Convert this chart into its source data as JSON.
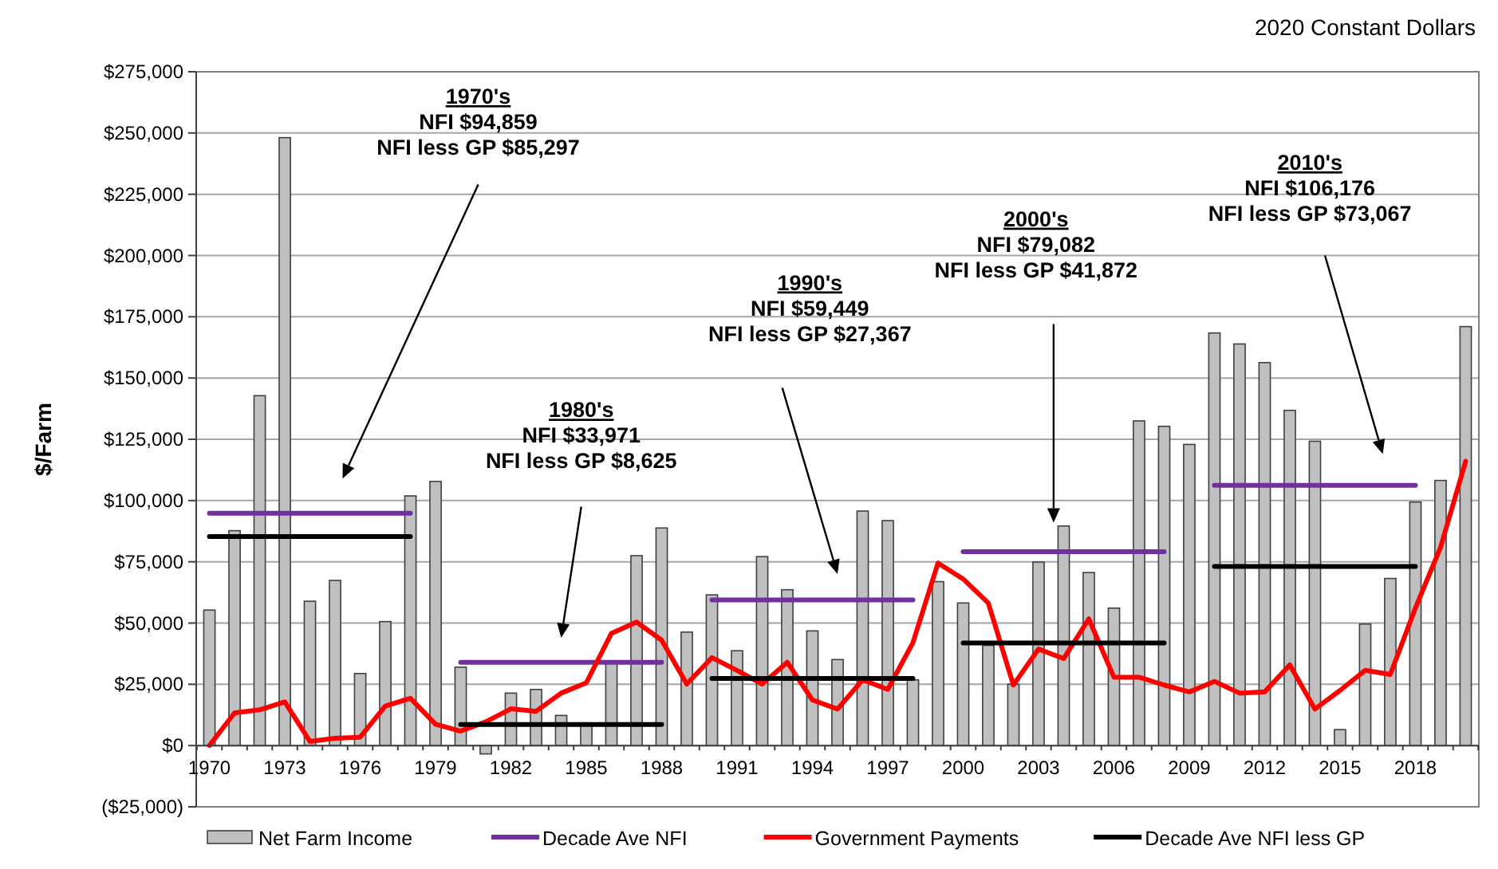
{
  "chart_data": {
    "type": "bar",
    "title": "2020 Constant Dollars",
    "ylabel": "$/Farm",
    "categories": [
      "1970",
      null,
      null,
      "1973",
      null,
      null,
      "1976",
      null,
      null,
      "1979",
      null,
      null,
      "1982",
      null,
      null,
      "1985",
      null,
      null,
      "1988",
      null,
      null,
      "1991",
      null,
      null,
      "1994",
      null,
      null,
      "1997",
      null,
      null,
      "2000",
      null,
      null,
      "2003",
      null,
      null,
      "2006",
      null,
      null,
      "2009",
      null,
      null,
      "2012",
      null,
      null,
      "2015",
      null,
      null,
      "2018",
      null,
      null
    ],
    "series": [
      {
        "name": "Net Farm Income",
        "color": "#c0c0c0",
        "values": [
          55300,
          87700,
          142800,
          248100,
          58900,
          67400,
          29400,
          50600,
          101900,
          107800,
          32000,
          -3400,
          21400,
          22900,
          12300,
          8700,
          33500,
          77500,
          88800,
          46300,
          61500,
          38700,
          77100,
          63600,
          46800,
          35100,
          95700,
          91800,
          26800,
          66900,
          58200,
          40900,
          25000,
          74900,
          89600,
          70600,
          56100,
          132500,
          130300,
          122900,
          168400,
          163900,
          156300,
          136800,
          124200,
          6500,
          49600,
          68200,
          99400,
          108200,
          171000
        ]
      },
      {
        "name": "Decade Ave NFI",
        "type": "line",
        "color": "#7030a0",
        "values": [
          94859,
          94859,
          94859,
          94859,
          94859,
          94859,
          94859,
          94859,
          94859,
          null,
          33971,
          33971,
          33971,
          33971,
          33971,
          33971,
          33971,
          33971,
          33971,
          null,
          59449,
          59449,
          59449,
          59449,
          59449,
          59449,
          59449,
          59449,
          59449,
          null,
          79082,
          79082,
          79082,
          79082,
          79082,
          79082,
          79082,
          79082,
          79082,
          null,
          106176,
          106176,
          106176,
          106176,
          106176,
          106176,
          106176,
          106176,
          106176,
          null,
          null
        ]
      },
      {
        "name": "Government Payments",
        "type": "line",
        "color": "#ff0000",
        "values": [
          0,
          13300,
          14600,
          17800,
          1700,
          3000,
          3400,
          16100,
          19300,
          8700,
          5900,
          9700,
          15000,
          14000,
          21400,
          25600,
          45800,
          50400,
          43000,
          25100,
          35900,
          30700,
          25100,
          34000,
          18600,
          14900,
          26800,
          22900,
          42000,
          74500,
          68000,
          58200,
          24700,
          39400,
          35500,
          51700,
          27900,
          27900,
          24700,
          21900,
          26200,
          21400,
          21900,
          32900,
          14900,
          22500,
          30700,
          29000,
          56100,
          80900,
          116000
        ]
      },
      {
        "name": "Decade Ave NFI less GP",
        "type": "line",
        "color": "#000000",
        "values": [
          85297,
          85297,
          85297,
          85297,
          85297,
          85297,
          85297,
          85297,
          85297,
          null,
          8625,
          8625,
          8625,
          8625,
          8625,
          8625,
          8625,
          8625,
          8625,
          null,
          27367,
          27367,
          27367,
          27367,
          27367,
          27367,
          27367,
          27367,
          27367,
          null,
          41872,
          41872,
          41872,
          41872,
          41872,
          41872,
          41872,
          41872,
          41872,
          null,
          73067,
          73067,
          73067,
          73067,
          73067,
          73067,
          73067,
          73067,
          73067,
          null,
          null
        ]
      }
    ],
    "ylim": [
      -25000,
      275000
    ],
    "yticks": [
      {
        "value": -25000,
        "label": "($25,000)"
      },
      {
        "value": 0,
        "label": "$0"
      },
      {
        "value": 25000,
        "label": "$25,000"
      },
      {
        "value": 50000,
        "label": "$50,000"
      },
      {
        "value": 75000,
        "label": "$75,000"
      },
      {
        "value": 100000,
        "label": "$100,000"
      },
      {
        "value": 125000,
        "label": "$125,000"
      },
      {
        "value": 150000,
        "label": "$150,000"
      },
      {
        "value": 175000,
        "label": "$175,000"
      },
      {
        "value": 200000,
        "label": "$200,000"
      },
      {
        "value": 225000,
        "label": "$225,000"
      },
      {
        "value": 250000,
        "label": "$250,000"
      },
      {
        "value": 275000,
        "label": "$275,000"
      }
    ],
    "grid": "y",
    "legend": "bottom",
    "annotations": [
      "1970's\nNFI $94,859\nNFI less GP $85,297",
      "1980's\nNFI $33,971\nNFI less GP $8,625",
      "1990's\nNFI $59,449\nNFI less GP $27,367",
      "2000's\nNFI $79,082\nNFI less GP $41,872",
      "2010's\nNFI $106,176\nNFI less GP $73,067"
    ]
  }
}
